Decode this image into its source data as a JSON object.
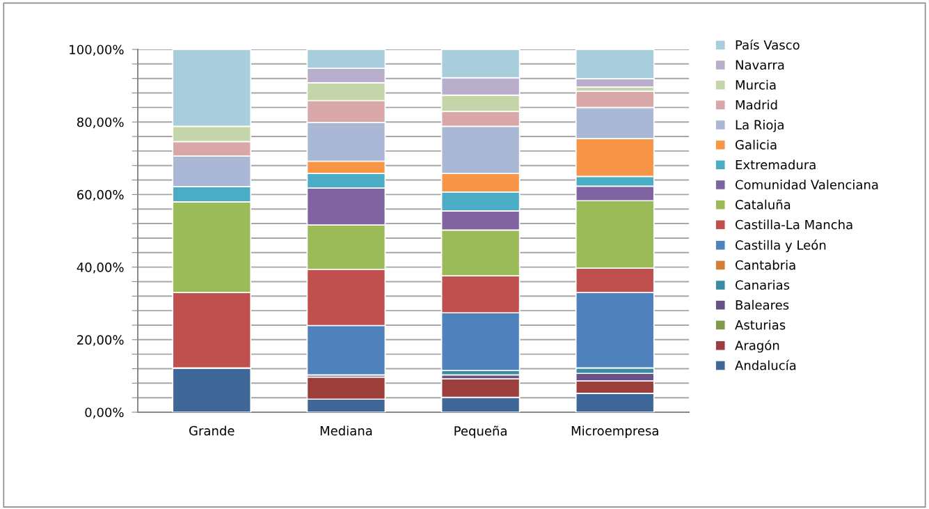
{
  "chart_data": {
    "type": "bar",
    "stacked": true,
    "categories": [
      "Grande",
      "Mediana",
      "Pequeña",
      "Microempresa"
    ],
    "series": [
      {
        "name": "Andalucía",
        "color": "#3f6899",
        "values": [
          12.2,
          3.6,
          4.1,
          5.2
        ]
      },
      {
        "name": "Aragón",
        "color": "#9c3e3c",
        "values": [
          0,
          6.1,
          5.1,
          3.4
        ]
      },
      {
        "name": "Asturias",
        "color": "#7f9a48",
        "values": [
          0,
          0,
          0,
          0
        ]
      },
      {
        "name": "Baleares",
        "color": "#695185",
        "values": [
          0,
          0.6,
          1.1,
          2.1
        ]
      },
      {
        "name": "Canarias",
        "color": "#3a8ba4",
        "values": [
          0,
          0,
          1.2,
          1.5
        ]
      },
      {
        "name": "Cantabria",
        "color": "#d07f34",
        "values": [
          0,
          0,
          0,
          0
        ]
      },
      {
        "name": "Castilla y León",
        "color": "#4f81bd",
        "values": [
          0,
          13.6,
          15.9,
          20.8
        ]
      },
      {
        "name": "Castilla-La Mancha",
        "color": "#c0504d",
        "values": [
          20.8,
          15.5,
          10.2,
          6.7
        ]
      },
      {
        "name": "Cataluña",
        "color": "#9bbb59",
        "values": [
          25.0,
          12.2,
          12.6,
          18.6
        ]
      },
      {
        "name": "Comunidad Valenciana",
        "color": "#8064a2",
        "values": [
          0,
          10.2,
          5.3,
          4.0
        ]
      },
      {
        "name": "Extremadura",
        "color": "#4bacc6",
        "values": [
          4.2,
          4.0,
          5.2,
          2.7
        ]
      },
      {
        "name": "Galicia",
        "color": "#f79646",
        "values": [
          0,
          3.4,
          5.1,
          10.4
        ]
      },
      {
        "name": "La Rioja",
        "color": "#aab8d6",
        "values": [
          8.4,
          10.7,
          13.0,
          8.6
        ]
      },
      {
        "name": "Madrid",
        "color": "#d9a7a7",
        "values": [
          4.0,
          6.0,
          4.1,
          4.5
        ]
      },
      {
        "name": "Murcia",
        "color": "#c5d5aa",
        "values": [
          4.2,
          4.9,
          4.5,
          1.1
        ]
      },
      {
        "name": "Navarra",
        "color": "#b8aecb",
        "values": [
          0,
          4.0,
          4.8,
          2.3
        ]
      },
      {
        "name": "País Vasco",
        "color": "#a8cddb",
        "values": [
          21.2,
          5.2,
          7.8,
          8.1
        ]
      }
    ],
    "ylim": [
      0,
      100
    ],
    "yticks": [
      {
        "value": 0,
        "label": "0,00%"
      },
      {
        "value": 4,
        "label": null
      },
      {
        "value": 8,
        "label": null
      },
      {
        "value": 12,
        "label": null
      },
      {
        "value": 16,
        "label": null
      },
      {
        "value": 20,
        "label": "20,00%"
      },
      {
        "value": 24,
        "label": null
      },
      {
        "value": 28,
        "label": null
      },
      {
        "value": 32,
        "label": null
      },
      {
        "value": 36,
        "label": null
      },
      {
        "value": 40,
        "label": "40,00%"
      },
      {
        "value": 44,
        "label": null
      },
      {
        "value": 48,
        "label": null
      },
      {
        "value": 52,
        "label": null
      },
      {
        "value": 56,
        "label": null
      },
      {
        "value": 60,
        "label": "60,00%"
      },
      {
        "value": 64,
        "label": null
      },
      {
        "value": 68,
        "label": null
      },
      {
        "value": 72,
        "label": null
      },
      {
        "value": 76,
        "label": null
      },
      {
        "value": 80,
        "label": "80,00%"
      },
      {
        "value": 84,
        "label": null
      },
      {
        "value": 88,
        "label": null
      },
      {
        "value": 92,
        "label": null
      },
      {
        "value": 96,
        "label": null
      },
      {
        "value": 100,
        "label": "100,00%"
      }
    ],
    "grid": "y",
    "legend": "right"
  }
}
